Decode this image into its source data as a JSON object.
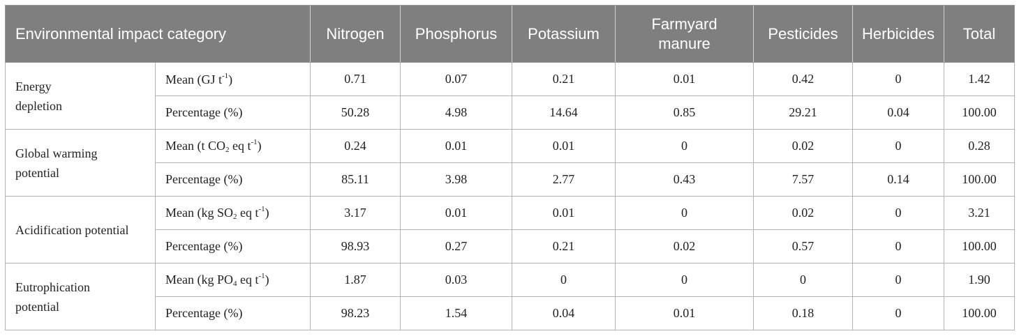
{
  "table": {
    "headers": [
      "Environmental impact category",
      "",
      "Nitrogen",
      "Phosphorus",
      "Potassium",
      "Farmyard manure",
      "Pesticides",
      "Herbicides",
      "Total"
    ],
    "groups": [
      {
        "category": "Energy depletion",
        "rows": [
          {
            "metric_parts": [
              "Mean (GJ t",
              "-1",
              ")"
            ],
            "values": [
              "0.71",
              "0.07",
              "0.21",
              "0.01",
              "0.42",
              "0",
              "1.42"
            ]
          },
          {
            "metric_parts": [
              "Percentage (%)"
            ],
            "values": [
              "50.28",
              "4.98",
              "14.64",
              "0.85",
              "29.21",
              "0.04",
              "100.00"
            ]
          }
        ]
      },
      {
        "category": "Global warming potential",
        "rows": [
          {
            "metric_parts": [
              "Mean (t CO",
              "2",
              " eq t",
              "-1",
              ")"
            ],
            "values": [
              "0.24",
              "0.01",
              "0.01",
              "0",
              "0.02",
              "0",
              "0.28"
            ]
          },
          {
            "metric_parts": [
              "Percentage (%)"
            ],
            "values": [
              "85.11",
              "3.98",
              "2.77",
              "0.43",
              "7.57",
              "0.14",
              "100.00"
            ]
          }
        ]
      },
      {
        "category": "Acidification potential",
        "rows": [
          {
            "metric_parts": [
              "Mean (kg SO",
              "2",
              " eq t",
              "-1",
              ")"
            ],
            "values": [
              "3.17",
              "0.01",
              "0.01",
              "0",
              "0.02",
              "0",
              "3.21"
            ]
          },
          {
            "metric_parts": [
              "Percentage (%)"
            ],
            "values": [
              "98.93",
              "0.27",
              "0.21",
              "0.02",
              "0.57",
              "0",
              "100.00"
            ]
          }
        ]
      },
      {
        "category": "Eutrophication potential",
        "rows": [
          {
            "metric_parts": [
              "Mean (kg PO",
              "4",
              " eq t",
              "-1",
              ")"
            ],
            "values": [
              "1.87",
              "0.03",
              "0",
              "0",
              "0",
              "0",
              "1.90"
            ]
          },
          {
            "metric_parts": [
              "Percentage (%)"
            ],
            "values": [
              "98.23",
              "1.54",
              "0.04",
              "0.01",
              "0.18",
              "0",
              "100.00"
            ]
          }
        ]
      }
    ]
  }
}
